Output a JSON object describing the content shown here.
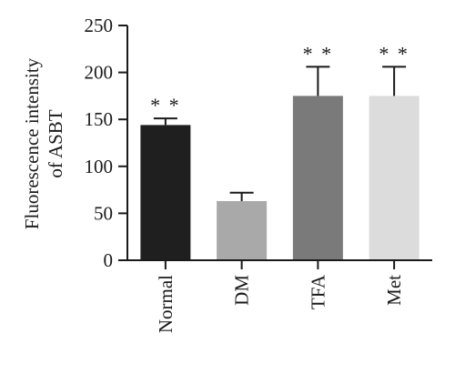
{
  "chart_data": {
    "type": "bar",
    "title": "",
    "xlabel": "",
    "ylabel": "Fluorescence intensity\nof ASBT",
    "ylabel_lines": [
      "Fluorescence intensity",
      "of ASBT"
    ],
    "ylim": [
      0,
      250
    ],
    "yticks": [
      0,
      50,
      100,
      150,
      200,
      250
    ],
    "categories": [
      "Normal",
      "DM",
      "TFA",
      "Met"
    ],
    "values": [
      144,
      63,
      175,
      175
    ],
    "errors": [
      7,
      9,
      31,
      31
    ],
    "significance": [
      "**",
      "",
      "**",
      "**"
    ],
    "bar_colors": [
      "#1f1f1f",
      "#a9a9a9",
      "#7a7a7a",
      "#dcdcdc"
    ],
    "grid": false,
    "legend": "none"
  }
}
